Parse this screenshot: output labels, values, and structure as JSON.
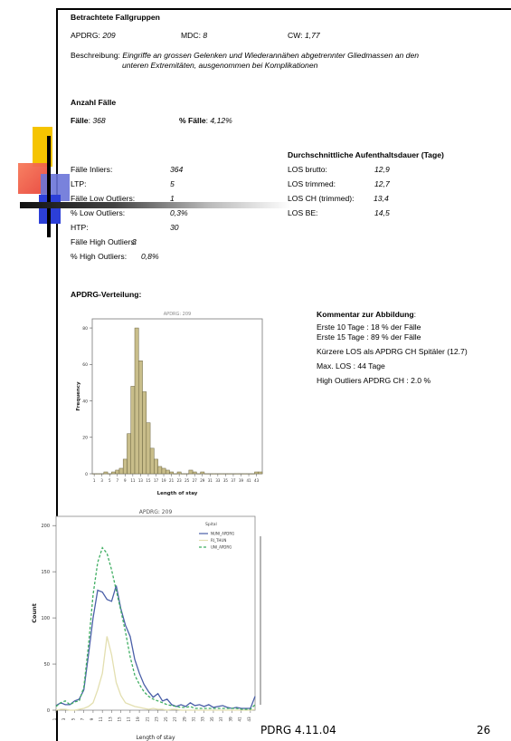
{
  "fallgruppen": {
    "heading": "Betrachtete Fallgruppen",
    "apdrg_label": "APDRG:",
    "apdrg_value": "209",
    "mdc_label": "MDC:",
    "mdc_value": "8",
    "cw_label": "CW:",
    "cw_value": "1,77",
    "beschreibung_label": "Beschreibung:",
    "beschreibung_line1": "Eingriffe an grossen Gelenken und Wiederannähen abgetrennter Gliedmassen an den",
    "beschreibung_line2": "unteren Extremitäten, ausgenommen bei Komplikationen"
  },
  "anzahl": {
    "heading": "Anzahl Fälle",
    "faelle_label": "Fälle",
    "faelle_value": "368",
    "pct_label": "% Fälle",
    "pct_value": "4,12%"
  },
  "stats_left": [
    {
      "label": "Fälle Inliers:",
      "value": "364"
    },
    {
      "label": "LTP:",
      "value": "5"
    },
    {
      "label": "Fälle Low Outliers:",
      "value": "1"
    },
    {
      "label": "% Low Outliers:",
      "value": "0,3%"
    },
    {
      "label": "HTP:",
      "value": "30"
    },
    {
      "label": "Fälle High Outliers:",
      "value": "3"
    },
    {
      "label": "% High Outliers:",
      "value": "0,8%"
    }
  ],
  "stats_right": {
    "heading": "Durchschnittliche Aufenthaltsdauer (Tage)",
    "rows": [
      {
        "label": "LOS brutto:",
        "value": "12,9"
      },
      {
        "label": "LOS trimmed:",
        "value": "12,7"
      },
      {
        "label": "LOS CH (trimmed):",
        "value": "13,4"
      },
      {
        "label": "LOS BE:",
        "value": "14,5"
      }
    ]
  },
  "verteilung": {
    "heading": "APDRG-Verteilung:"
  },
  "kommentar": {
    "heading": "Kommentar zur Abbildung",
    "line1": "Erste 10 Tage : 18 % der Fälle",
    "line2": "Erste 15 Tage : 89 % der Fälle",
    "line3": "Kürzere LOS als APDRG CH Spitäler (12.7)",
    "line4": "Max. LOS : 44 Tage",
    "line5": "High Outliers APDRG CH : 2.0 %"
  },
  "footer": {
    "label": "PDRG 4.11.04",
    "page": "26"
  },
  "colors": {
    "bar": "#c8bd8a",
    "bar_stroke": "#6b6440",
    "uni": "#4a5fa8",
    "ri": "#e3dfb0",
    "uniapdrg": "#3fae62"
  },
  "chart_data": [
    {
      "type": "bar",
      "title": "APDRG: 209",
      "xlabel": "Length of stay",
      "ylabel": "Frequency",
      "ylim": [
        0,
        85
      ],
      "yticks": [
        "0",
        "20",
        "40",
        "60",
        "80"
      ],
      "categories": [
        "1",
        "2",
        "3",
        "4",
        "5",
        "6",
        "7",
        "8",
        "9",
        "10",
        "11",
        "12",
        "13",
        "14",
        "15",
        "16",
        "17",
        "18",
        "19",
        "20",
        "21",
        "22",
        "23",
        "24",
        "25",
        "26",
        "27",
        "28",
        "29",
        "30",
        "31",
        "32",
        "33",
        "34",
        "35",
        "36",
        "37",
        "38",
        "39",
        "40",
        "41",
        "42",
        "43",
        "44"
      ],
      "values": [
        0,
        0,
        0,
        1,
        0,
        1,
        2,
        3,
        8,
        22,
        48,
        80,
        62,
        45,
        28,
        14,
        8,
        4,
        3,
        2,
        1,
        0,
        1,
        0,
        0,
        2,
        1,
        0,
        1,
        0,
        0,
        0,
        0,
        0,
        0,
        0,
        0,
        0,
        0,
        0,
        0,
        0,
        1,
        1
      ],
      "xticks": [
        "1",
        "3",
        "5",
        "7",
        "9",
        "11",
        "13",
        "15",
        "17",
        "19",
        "21",
        "23",
        "25",
        "27",
        "29",
        "31",
        "33",
        "35",
        "37",
        "39",
        "41",
        "43"
      ]
    },
    {
      "type": "line",
      "title": "APDRG: 209",
      "xlabel": "Length of stay",
      "ylabel": "Count",
      "ylim": [
        0,
        210
      ],
      "yticks": [
        "0",
        "50",
        "100",
        "150",
        "200"
      ],
      "legend_title": "Spital",
      "x": [
        1,
        2,
        3,
        4,
        5,
        6,
        7,
        8,
        9,
        10,
        11,
        12,
        13,
        14,
        15,
        16,
        17,
        18,
        19,
        20,
        21,
        22,
        23,
        24,
        25,
        26,
        27,
        28,
        29,
        30,
        31,
        32,
        33,
        34,
        35,
        36,
        37,
        38,
        39,
        40,
        41,
        42,
        43,
        44
      ],
      "xticks": [
        "1",
        "3",
        "5",
        "7",
        "9",
        "11",
        "13",
        "15",
        "17",
        "19",
        "21",
        "23",
        "25",
        "27",
        "29",
        "31",
        "33",
        "35",
        "37",
        "39",
        "41",
        "43"
      ],
      "series": [
        {
          "name": "NUNI_APDRG",
          "values": [
            5,
            8,
            6,
            6,
            10,
            12,
            22,
            60,
            100,
            130,
            128,
            120,
            118,
            135,
            110,
            92,
            80,
            55,
            40,
            28,
            20,
            14,
            18,
            10,
            12,
            6,
            4,
            6,
            4,
            8,
            5,
            6,
            4,
            6,
            3,
            4,
            5,
            3,
            2,
            3,
            2,
            2,
            2,
            15
          ]
        },
        {
          "name": "RI_THUN",
          "values": [
            0,
            1,
            1,
            0,
            0,
            1,
            2,
            4,
            8,
            22,
            40,
            80,
            60,
            30,
            16,
            8,
            6,
            4,
            3,
            2,
            1,
            2,
            1,
            1,
            0,
            1,
            1,
            0,
            0,
            0,
            0,
            0,
            0,
            0,
            0,
            0,
            0,
            0,
            0,
            0,
            0,
            0,
            0,
            1
          ]
        },
        {
          "name": "UNI_APDRG",
          "values": [
            4,
            8,
            10,
            6,
            9,
            10,
            25,
            70,
            125,
            160,
            176,
            170,
            152,
            130,
            108,
            85,
            58,
            38,
            28,
            20,
            15,
            12,
            10,
            8,
            6,
            5,
            4,
            3,
            3,
            4,
            2,
            2,
            2,
            2,
            2,
            2,
            2,
            2,
            2,
            2,
            1,
            1,
            1,
            6
          ]
        }
      ]
    }
  ]
}
